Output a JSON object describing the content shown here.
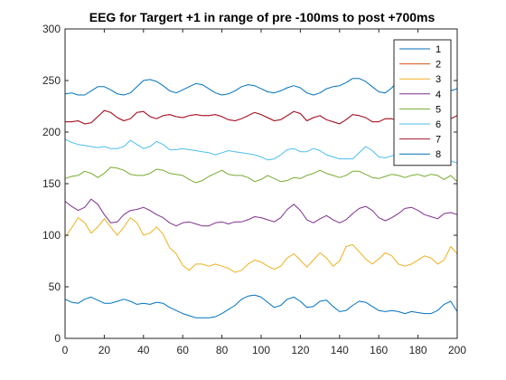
{
  "chart_data": {
    "type": "line",
    "title": "EEG for Targert +1 in range of pre -100ms to post +700ms",
    "xlabel": "",
    "ylabel": "",
    "xlim": [
      0,
      200
    ],
    "ylim": [
      0,
      300
    ],
    "xticks": [
      0,
      20,
      40,
      60,
      80,
      100,
      120,
      140,
      160,
      180,
      200
    ],
    "yticks": [
      0,
      50,
      100,
      150,
      200,
      250,
      300
    ],
    "legend": "top-right",
    "grid": false,
    "series": [
      {
        "name": "1",
        "color": "#0072BD",
        "values": [
          237,
          238,
          236,
          236,
          240,
          244,
          244,
          241,
          237,
          236,
          238,
          244,
          250,
          251,
          249,
          245,
          240,
          238,
          241,
          244,
          247,
          246,
          242,
          238,
          236,
          237,
          240,
          244,
          246,
          245,
          242,
          239,
          238,
          240,
          243,
          245,
          243,
          238,
          236,
          238,
          242,
          244,
          245,
          248,
          252,
          252,
          249,
          244,
          239,
          238,
          243,
          250,
          252,
          250,
          245,
          239,
          242,
          245,
          244,
          240,
          242
        ]
      },
      {
        "name": "2",
        "color": "#D95319",
        "values": [
          210,
          210,
          211,
          208,
          209,
          215,
          221,
          219,
          214,
          211,
          213,
          219,
          220,
          215,
          213,
          216,
          217,
          215,
          214,
          216,
          217,
          216,
          216,
          217,
          215,
          212,
          211,
          213,
          216,
          219,
          217,
          214,
          211,
          212,
          216,
          220,
          218,
          211,
          214,
          216,
          212,
          210,
          208,
          212,
          217,
          216,
          214,
          210,
          210,
          213,
          213,
          211,
          210,
          210,
          211,
          213,
          212,
          213,
          212,
          213,
          216
        ]
      },
      {
        "name": "3",
        "color": "#EDB120",
        "values": [
          98,
          107,
          117,
          112,
          102,
          108,
          116,
          108,
          100,
          108,
          117,
          112,
          100,
          102,
          108,
          101,
          88,
          82,
          71,
          66,
          72,
          72,
          70,
          72,
          70,
          68,
          64,
          66,
          72,
          76,
          74,
          70,
          67,
          70,
          78,
          82,
          76,
          69,
          76,
          83,
          78,
          70,
          75,
          89,
          91,
          84,
          77,
          72,
          77,
          83,
          80,
          72,
          70,
          72,
          76,
          80,
          78,
          72,
          76,
          89,
          82
        ]
      },
      {
        "name": "4",
        "color": "#7E2F8E",
        "values": [
          133,
          128,
          124,
          127,
          135,
          130,
          120,
          112,
          113,
          120,
          124,
          125,
          127,
          124,
          120,
          117,
          112,
          109,
          112,
          113,
          111,
          109,
          109,
          112,
          113,
          111,
          113,
          113,
          115,
          118,
          117,
          115,
          113,
          117,
          125,
          130,
          124,
          115,
          112,
          116,
          119,
          115,
          112,
          115,
          121,
          126,
          128,
          124,
          117,
          114,
          117,
          121,
          126,
          127,
          124,
          120,
          118,
          116,
          121,
          122,
          120
        ]
      },
      {
        "name": "5",
        "color": "#77AC30",
        "values": [
          155,
          157,
          158,
          162,
          160,
          156,
          160,
          166,
          165,
          163,
          159,
          158,
          158,
          160,
          164,
          163,
          160,
          159,
          158,
          154,
          151,
          153,
          157,
          160,
          163,
          159,
          158,
          158,
          156,
          152,
          154,
          158,
          155,
          152,
          153,
          156,
          155,
          158,
          160,
          163,
          160,
          158,
          156,
          158,
          162,
          162,
          159,
          156,
          155,
          157,
          159,
          158,
          156,
          158,
          159,
          157,
          159,
          158,
          154,
          158,
          152
        ]
      },
      {
        "name": "6",
        "color": "#4DBEEE",
        "values": [
          193,
          190,
          188,
          187,
          186,
          185,
          186,
          184,
          184,
          186,
          192,
          188,
          184,
          186,
          191,
          188,
          183,
          183,
          184,
          183,
          182,
          181,
          180,
          178,
          180,
          182,
          181,
          180,
          179,
          178,
          176,
          173,
          174,
          178,
          183,
          184,
          181,
          181,
          184,
          182,
          178,
          176,
          174,
          174,
          174,
          180,
          186,
          182,
          176,
          175,
          177,
          179,
          174,
          171,
          172,
          170,
          169,
          172,
          177,
          172,
          170
        ]
      },
      {
        "name": "7",
        "color": "#A2142F",
        "values": [
          210,
          210,
          211,
          208,
          209,
          215,
          221,
          219,
          214,
          211,
          213,
          219,
          220,
          215,
          213,
          216,
          217,
          215,
          214,
          216,
          217,
          216,
          216,
          217,
          215,
          212,
          211,
          213,
          216,
          219,
          217,
          214,
          211,
          212,
          216,
          220,
          218,
          211,
          214,
          216,
          212,
          210,
          208,
          212,
          217,
          216,
          214,
          210,
          210,
          213,
          213,
          211,
          210,
          210,
          211,
          213,
          212,
          213,
          212,
          213,
          216
        ]
      },
      {
        "name": "8",
        "color": "#0072BD",
        "values": [
          38,
          35,
          34,
          38,
          40,
          37,
          34,
          34,
          36,
          38,
          36,
          33,
          34,
          33,
          35,
          34,
          30,
          27,
          24,
          22,
          20,
          20,
          20,
          21,
          24,
          28,
          32,
          38,
          41,
          42,
          40,
          35,
          30,
          32,
          38,
          40,
          36,
          30,
          31,
          36,
          37,
          31,
          26,
          27,
          32,
          36,
          35,
          31,
          27,
          26,
          27,
          26,
          24,
          26,
          25,
          24,
          24,
          27,
          33,
          36,
          26
        ]
      }
    ]
  }
}
